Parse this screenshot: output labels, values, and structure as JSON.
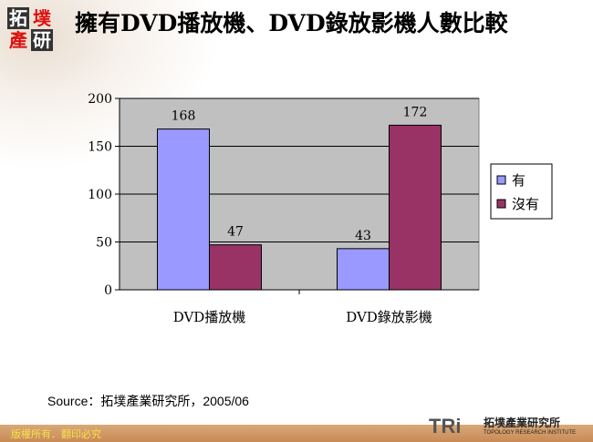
{
  "header": {
    "title": "擁有DVD播放機、DVD錄放影機人數比較",
    "logo_text": [
      "拓",
      "墣",
      "產",
      "研"
    ]
  },
  "chart_data": {
    "type": "bar",
    "title": "",
    "categories": [
      "DVD播放機",
      "DVD錄放影機"
    ],
    "series": [
      {
        "name": "有",
        "values": [
          168,
          43
        ],
        "color": "#9999ff"
      },
      {
        "name": "沒有",
        "values": [
          47,
          172
        ],
        "color": "#993366"
      }
    ],
    "ylim": [
      0,
      200
    ],
    "yticks": [
      0,
      50,
      100,
      150,
      200
    ],
    "grid": true,
    "plot_background": "#c0c0c0",
    "legend_position": "right",
    "xlabel": "",
    "ylabel": ""
  },
  "source": "Source：拓墣產業研究所，2005/06",
  "footer": {
    "copyright": "版權所有．翻印必究",
    "brand": "TRi",
    "brand_cn": "拓墣產業研究所",
    "brand_en": "TOPOLOGY RESEARCH INSTITUTE"
  }
}
